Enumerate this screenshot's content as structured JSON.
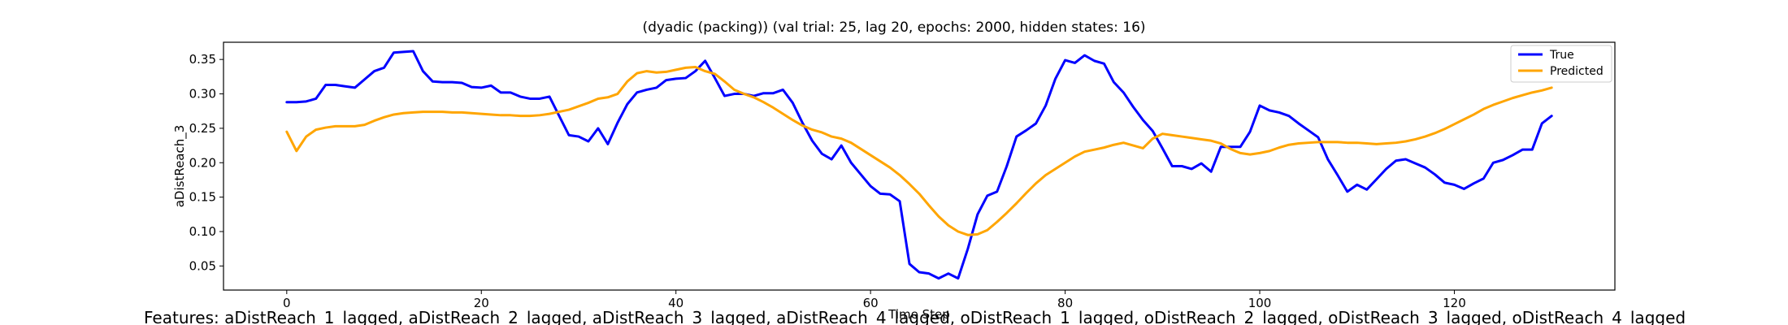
{
  "chart_data": {
    "type": "line",
    "title": "(dyadic (packing)) (val trial: 25, lag 20, epochs: 2000, hidden states: 16)",
    "xlabel": "Time Step",
    "ylabel": "aDistReach_3",
    "xlim": [
      -6.5,
      136.5
    ],
    "ylim": [
      0.015,
      0.375
    ],
    "xticks": [
      0,
      20,
      40,
      60,
      80,
      100,
      120
    ],
    "yticks": [
      0.05,
      0.1,
      0.15,
      0.2,
      0.25,
      0.3,
      0.35
    ],
    "ytick_labels": [
      "0.05",
      "0.10",
      "0.15",
      "0.20",
      "0.25",
      "0.30",
      "0.35"
    ],
    "grid": false,
    "legend": "top-right",
    "footer": "Features: aDistReach_1_lagged, aDistReach_2_lagged, aDistReach_3_lagged, aDistReach_4_lagged, oDistReach_1_lagged, oDistReach_2_lagged, oDistReach_3_lagged, oDistReach_4_lagged",
    "series": [
      {
        "name": "True",
        "color": "#0000ff",
        "values": [
          0.288,
          0.288,
          0.289,
          0.293,
          0.313,
          0.313,
          0.311,
          0.309,
          0.321,
          0.333,
          0.338,
          0.36,
          0.361,
          0.362,
          0.333,
          0.318,
          0.317,
          0.317,
          0.316,
          0.31,
          0.309,
          0.312,
          0.302,
          0.302,
          0.296,
          0.293,
          0.293,
          0.296,
          0.268,
          0.24,
          0.238,
          0.231,
          0.25,
          0.227,
          0.258,
          0.285,
          0.302,
          0.306,
          0.309,
          0.32,
          0.322,
          0.323,
          0.333,
          0.348,
          0.323,
          0.297,
          0.3,
          0.3,
          0.297,
          0.301,
          0.301,
          0.306,
          0.287,
          0.258,
          0.232,
          0.213,
          0.205,
          0.225,
          0.2,
          0.183,
          0.166,
          0.155,
          0.154,
          0.144,
          0.053,
          0.041,
          0.039,
          0.032,
          0.039,
          0.032,
          0.075,
          0.125,
          0.152,
          0.158,
          0.195,
          0.238,
          0.247,
          0.257,
          0.283,
          0.322,
          0.349,
          0.345,
          0.356,
          0.348,
          0.344,
          0.317,
          0.302,
          0.281,
          0.262,
          0.246,
          0.221,
          0.195,
          0.195,
          0.191,
          0.199,
          0.187,
          0.223,
          0.223,
          0.223,
          0.245,
          0.283,
          0.276,
          0.273,
          0.268,
          0.257,
          0.247,
          0.237,
          0.205,
          0.182,
          0.158,
          0.168,
          0.161,
          0.176,
          0.191,
          0.203,
          0.205,
          0.199,
          0.193,
          0.183,
          0.171,
          0.168,
          0.162,
          0.17,
          0.177,
          0.2,
          0.204,
          0.211,
          0.219,
          0.219,
          0.257,
          0.268
        ]
      },
      {
        "name": "Predicted",
        "color": "#ffa500",
        "values": [
          0.245,
          0.217,
          0.238,
          0.248,
          0.251,
          0.253,
          0.253,
          0.253,
          0.255,
          0.261,
          0.266,
          0.27,
          0.272,
          0.273,
          0.274,
          0.274,
          0.274,
          0.273,
          0.273,
          0.272,
          0.271,
          0.27,
          0.269,
          0.269,
          0.268,
          0.268,
          0.269,
          0.271,
          0.274,
          0.277,
          0.282,
          0.287,
          0.293,
          0.295,
          0.3,
          0.318,
          0.33,
          0.333,
          0.331,
          0.332,
          0.335,
          0.338,
          0.339,
          0.333,
          0.329,
          0.318,
          0.306,
          0.3,
          0.295,
          0.288,
          0.28,
          0.271,
          0.262,
          0.254,
          0.248,
          0.244,
          0.238,
          0.235,
          0.229,
          0.22,
          0.211,
          0.202,
          0.193,
          0.182,
          0.169,
          0.155,
          0.138,
          0.122,
          0.109,
          0.1,
          0.095,
          0.096,
          0.102,
          0.114,
          0.127,
          0.141,
          0.156,
          0.17,
          0.182,
          0.191,
          0.2,
          0.209,
          0.216,
          0.219,
          0.222,
          0.226,
          0.229,
          0.225,
          0.221,
          0.235,
          0.242,
          0.24,
          0.238,
          0.236,
          0.234,
          0.232,
          0.228,
          0.22,
          0.214,
          0.212,
          0.214,
          0.217,
          0.222,
          0.226,
          0.228,
          0.229,
          0.23,
          0.23,
          0.23,
          0.229,
          0.229,
          0.228,
          0.227,
          0.228,
          0.229,
          0.231,
          0.234,
          0.238,
          0.243,
          0.249,
          0.256,
          0.263,
          0.27,
          0.278,
          0.284,
          0.289,
          0.294,
          0.298,
          0.302,
          0.305,
          0.309
        ]
      }
    ]
  }
}
